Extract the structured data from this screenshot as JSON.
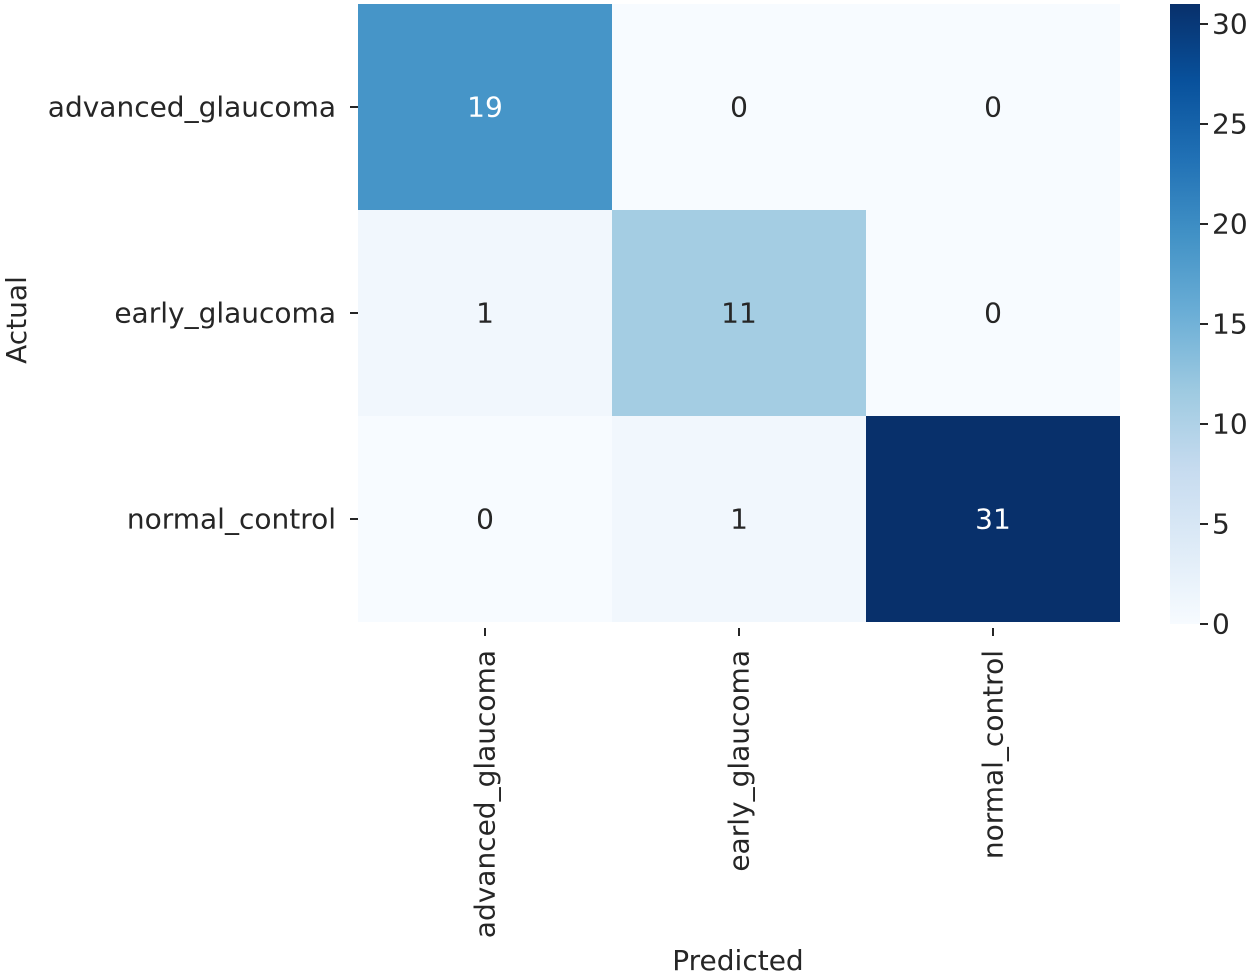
{
  "chart_data": {
    "type": "heatmap",
    "title": "",
    "xlabel": "Predicted",
    "ylabel": "Actual",
    "x_categories": [
      "advanced_glaucoma",
      "early_glaucoma",
      "normal_control"
    ],
    "y_categories": [
      "advanced_glaucoma",
      "early_glaucoma",
      "normal_control"
    ],
    "values": [
      [
        19,
        0,
        0
      ],
      [
        1,
        11,
        0
      ],
      [
        0,
        1,
        31
      ]
    ],
    "colormap": "Blues",
    "colorbar": {
      "min": 0,
      "max": 31,
      "ticks": [
        0,
        5,
        10,
        15,
        20,
        25,
        30
      ],
      "low_color": "#f7fbff",
      "high_color": "#08306b"
    },
    "annotations": true,
    "grid": false
  }
}
